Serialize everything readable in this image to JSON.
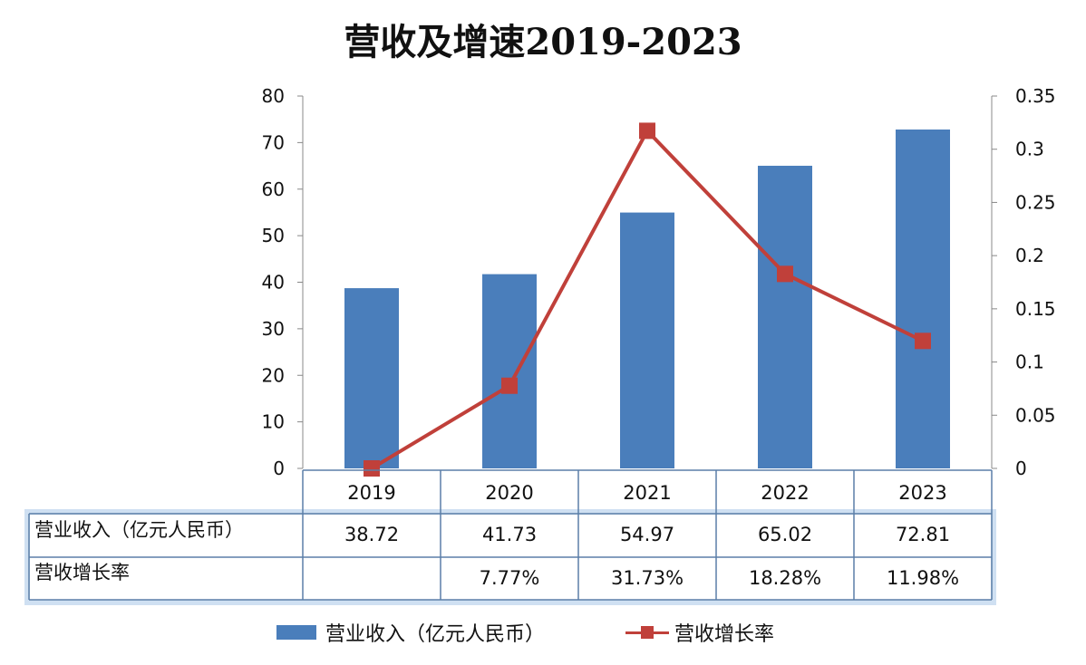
{
  "chart_data": {
    "type": "bar",
    "title": "营收及增速2019-2023",
    "categories": [
      "2019",
      "2020",
      "2021",
      "2022",
      "2023"
    ],
    "series": [
      {
        "name": "营业收入（亿元人民币）",
        "type": "bar",
        "axis": "left",
        "color": "#4a7ebb",
        "values": [
          38.72,
          41.73,
          54.97,
          65.02,
          72.81
        ]
      },
      {
        "name": "营收增长率",
        "type": "line",
        "axis": "right",
        "color": "#c0403a",
        "values": [
          0,
          0.0777,
          0.3173,
          0.1828,
          0.1198
        ]
      }
    ],
    "y_left": {
      "min": 0,
      "max": 80,
      "ticks": [
        "0",
        "10",
        "20",
        "30",
        "40",
        "50",
        "60",
        "70",
        "80"
      ]
    },
    "y_right": {
      "min": 0,
      "max": 0.35,
      "ticks": [
        "0",
        "0.05",
        "0.1",
        "0.15",
        "0.2",
        "0.25",
        "0.3",
        "0.35"
      ]
    },
    "grid": false,
    "legend_position": "bottom",
    "table": {
      "rows": [
        {
          "label": "营业收入（亿元人民币）",
          "cells": [
            "38.72",
            "41.73",
            "54.97",
            "65.02",
            "72.81"
          ]
        },
        {
          "label": "营收增长率",
          "cells": [
            "",
            "7.77%",
            "31.73%",
            "18.28%",
            "11.98%"
          ]
        }
      ]
    }
  }
}
